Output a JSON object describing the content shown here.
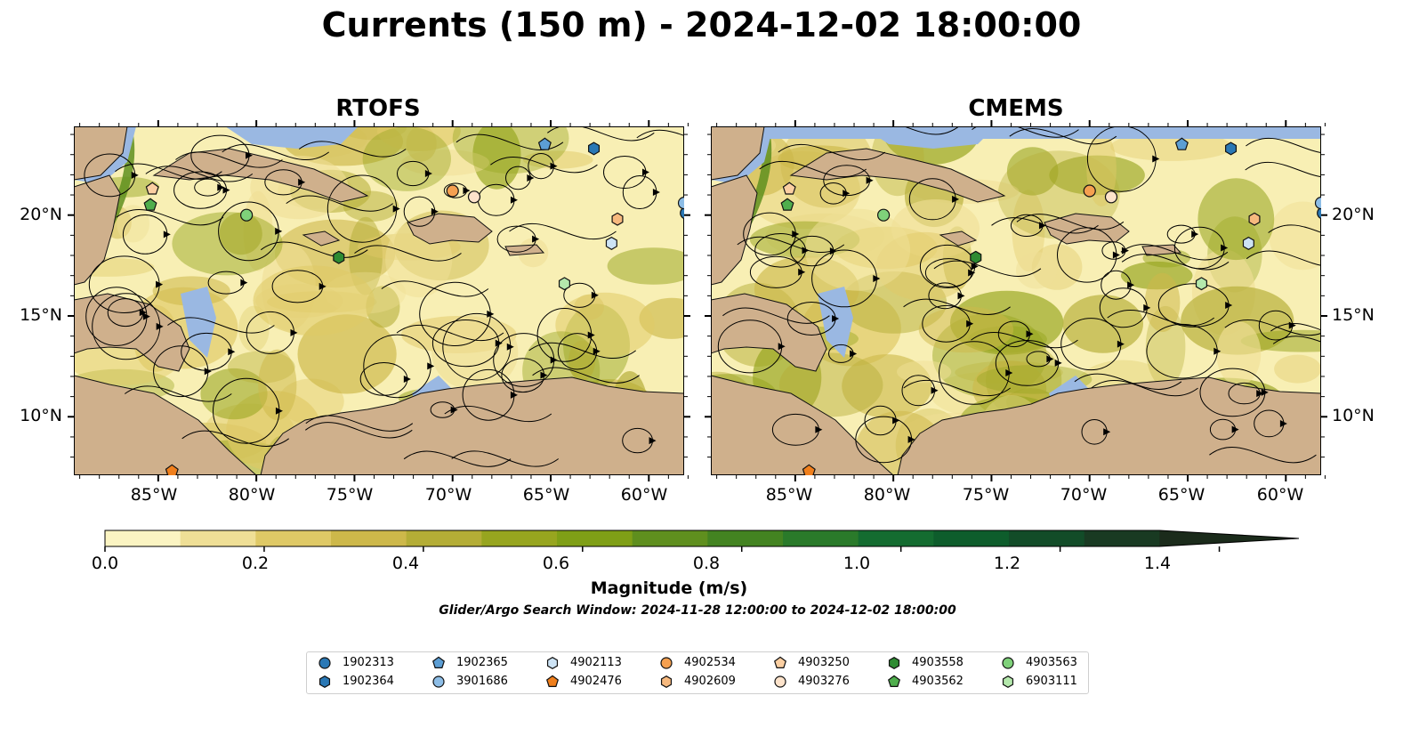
{
  "figure": {
    "title": "Currents (150 m) - 2024-12-02 18:00:00",
    "panels": [
      {
        "title": "RTOFS"
      },
      {
        "title": "CMEMS"
      }
    ],
    "lon_ticks": [
      "85°W",
      "80°W",
      "75°W",
      "70°W",
      "65°W",
      "60°W"
    ],
    "lat_ticks": [
      "20°N",
      "15°N",
      "10°N"
    ],
    "colorbar": {
      "label": "Magnitude (m/s)",
      "ticks": [
        "0.0",
        "0.2",
        "0.4",
        "0.6",
        "0.8",
        "1.0",
        "1.2",
        "1.4"
      ],
      "colors": [
        "#fbf4c2",
        "#efdf96",
        "#dfc966",
        "#cdb84a",
        "#b4ad36",
        "#97a51f",
        "#7f9f16",
        "#5f8f1e",
        "#438321",
        "#2a7a2a",
        "#146c30",
        "#0e5d2c",
        "#124c28",
        "#193a22",
        "#1b2b1b"
      ],
      "extend": "max",
      "range": [
        0,
        1.5
      ]
    },
    "subtitle": "Glider/Argo Search Window: 2024-11-28 12:00:00 to 2024-12-02 18:00:00"
  },
  "map_colors": {
    "land": "#cfb08c",
    "water": "#9ab8e2",
    "slow_current": "#f8efb4",
    "streamline": "#000000"
  },
  "legend": {
    "items": [
      {
        "id": "1902313",
        "marker": "circle",
        "color": "#2a78b5"
      },
      {
        "id": "1902364",
        "marker": "hexagon",
        "color": "#2a78b5"
      },
      {
        "id": "1902365",
        "marker": "pentagon",
        "color": "#5c9ed4"
      },
      {
        "id": "3901686",
        "marker": "circle",
        "color": "#8dbde6"
      },
      {
        "id": "4902113",
        "marker": "hexagon",
        "color": "#cde3f5"
      },
      {
        "id": "4902476",
        "marker": "pentagon",
        "color": "#f07f1c"
      },
      {
        "id": "4902534",
        "marker": "circle",
        "color": "#f5a050"
      },
      {
        "id": "4902609",
        "marker": "hexagon",
        "color": "#f7b97e"
      },
      {
        "id": "4903250",
        "marker": "pentagon",
        "color": "#fbcfa2"
      },
      {
        "id": "4903276",
        "marker": "circle",
        "color": "#fde3cb"
      },
      {
        "id": "4903558",
        "marker": "hexagon",
        "color": "#2e8b32"
      },
      {
        "id": "4903562",
        "marker": "pentagon",
        "color": "#4fae4d"
      },
      {
        "id": "4903563",
        "marker": "circle",
        "color": "#7fd17a"
      },
      {
        "id": "6903111",
        "marker": "hexagon",
        "color": "#b4e8ac"
      }
    ]
  },
  "platforms": [
    {
      "id": "1902313",
      "lon": -58.1,
      "lat": 20.1
    },
    {
      "id": "1902364",
      "lon": -62.8,
      "lat": 23.3
    },
    {
      "id": "1902365",
      "lon": -65.3,
      "lat": 23.5
    },
    {
      "id": "3901686",
      "lon": -58.2,
      "lat": 20.6
    },
    {
      "id": "4902113",
      "lon": -61.9,
      "lat": 18.6
    },
    {
      "id": "4902476",
      "lon": -84.3,
      "lat": 7.3
    },
    {
      "id": "4902534",
      "lon": -70.0,
      "lat": 21.2
    },
    {
      "id": "4902609",
      "lon": -61.6,
      "lat": 19.8
    },
    {
      "id": "4903250",
      "lon": -85.3,
      "lat": 21.3
    },
    {
      "id": "4903276",
      "lon": -68.9,
      "lat": 20.9
    },
    {
      "id": "4903558",
      "lon": -75.8,
      "lat": 17.9
    },
    {
      "id": "4903562",
      "lon": -85.4,
      "lat": 20.5
    },
    {
      "id": "4903563",
      "lon": -80.5,
      "lat": 20.0
    },
    {
      "id": "6903111",
      "lon": -64.3,
      "lat": 16.6
    }
  ]
}
